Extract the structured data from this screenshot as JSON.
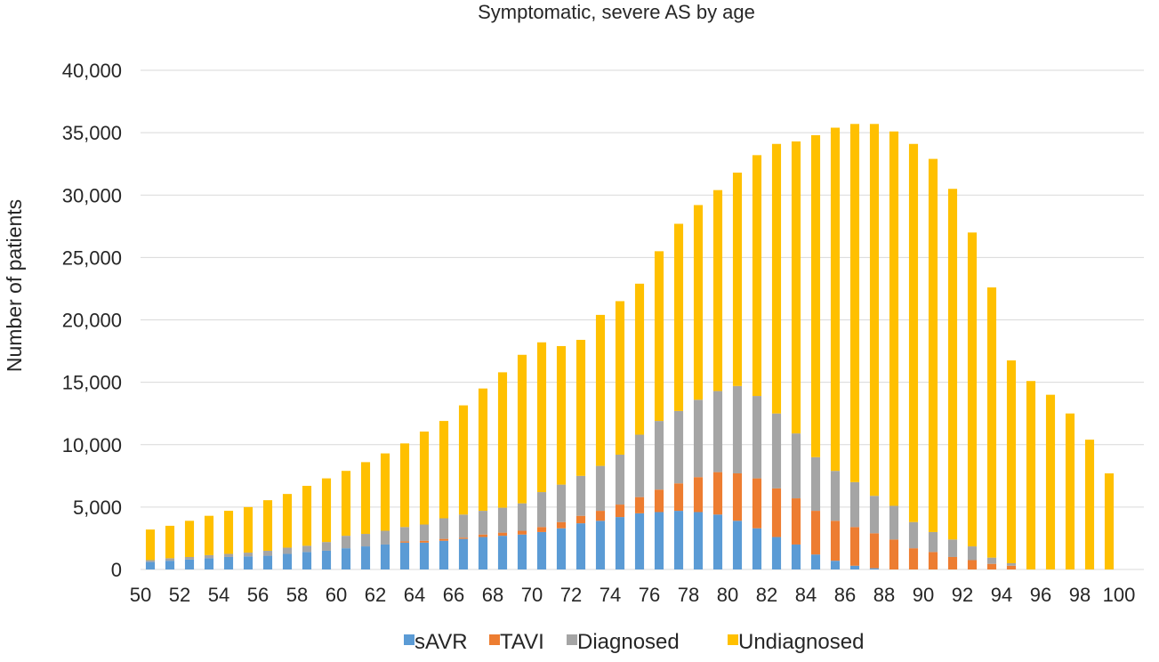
{
  "chart_data": {
    "type": "bar",
    "stacked": true,
    "title": "Symptomatic, severe AS by age",
    "xlabel": "",
    "ylabel": "Number of patients",
    "ylim": [
      0,
      40000
    ],
    "yticks": [
      "0",
      "5,000",
      "10,000",
      "15,000",
      "20,000",
      "25,000",
      "30,000",
      "35,000",
      "40,000"
    ],
    "xticks": [
      "50",
      "52",
      "54",
      "56",
      "58",
      "60",
      "62",
      "64",
      "66",
      "68",
      "70",
      "72",
      "74",
      "76",
      "78",
      "80",
      "82",
      "84",
      "86",
      "88",
      "90",
      "92",
      "94",
      "96",
      "98",
      "100"
    ],
    "grid": true,
    "legend_position": "bottom",
    "categories": [
      50,
      51,
      52,
      53,
      54,
      55,
      56,
      57,
      58,
      59,
      60,
      61,
      62,
      63,
      64,
      65,
      66,
      67,
      68,
      69,
      70,
      71,
      72,
      73,
      74,
      75,
      76,
      77,
      78,
      79,
      80,
      81,
      82,
      83,
      84,
      85,
      86,
      87,
      88,
      89,
      90,
      91,
      92,
      93,
      94,
      95,
      96,
      97,
      98,
      99
    ],
    "series": [
      {
        "name": "sAVR",
        "color": "#5b9bd5",
        "values": [
          600,
          700,
          800,
          900,
          1000,
          1050,
          1100,
          1250,
          1400,
          1500,
          1700,
          1850,
          2000,
          2150,
          2150,
          2300,
          2450,
          2600,
          2700,
          2800,
          3000,
          3300,
          3700,
          3900,
          4200,
          4500,
          4600,
          4700,
          4600,
          4400,
          3900,
          3300,
          2600,
          2000,
          1200,
          700,
          300,
          100,
          0,
          0,
          0,
          0,
          0,
          0,
          0,
          0,
          0,
          0,
          0,
          0
        ]
      },
      {
        "name": "TAVI",
        "color": "#ed7d31",
        "values": [
          0,
          0,
          0,
          0,
          0,
          0,
          0,
          0,
          0,
          0,
          0,
          0,
          0,
          100,
          150,
          150,
          100,
          200,
          250,
          300,
          400,
          500,
          600,
          800,
          1000,
          1300,
          1800,
          2200,
          2800,
          3400,
          3800,
          4000,
          3900,
          3700,
          3500,
          3200,
          3100,
          2800,
          2400,
          1700,
          1400,
          1000,
          750,
          450,
          300,
          0,
          0,
          0,
          0,
          0
        ]
      },
      {
        "name": "Diagnosed",
        "color": "#a5a5a5",
        "values": [
          150,
          200,
          200,
          250,
          250,
          300,
          400,
          500,
          500,
          700,
          1000,
          1000,
          1100,
          1150,
          1300,
          1650,
          1850,
          1900,
          2000,
          2200,
          2800,
          3000,
          3200,
          3600,
          4000,
          5000,
          5500,
          5800,
          6200,
          6500,
          7000,
          6600,
          6000,
          5200,
          4300,
          4000,
          3600,
          3000,
          2700,
          2100,
          1600,
          1400,
          1100,
          500,
          200,
          0,
          0,
          0,
          0,
          0
        ]
      },
      {
        "name": "Undiagnosed",
        "color": "#ffc000",
        "values": [
          2450,
          2600,
          2900,
          3150,
          3450,
          3650,
          4050,
          4300,
          4800,
          5100,
          5200,
          5750,
          6200,
          6700,
          7450,
          7800,
          8750,
          9800,
          10850,
          11900,
          12000,
          11100,
          10900,
          12100,
          12300,
          12100,
          13600,
          15000,
          15600,
          16100,
          17100,
          19300,
          21600,
          23400,
          25800,
          27500,
          28700,
          29800,
          30000,
          30300,
          29900,
          28100,
          25150,
          21650,
          16250,
          15100,
          14000,
          12500,
          10400,
          7700
        ]
      }
    ]
  }
}
